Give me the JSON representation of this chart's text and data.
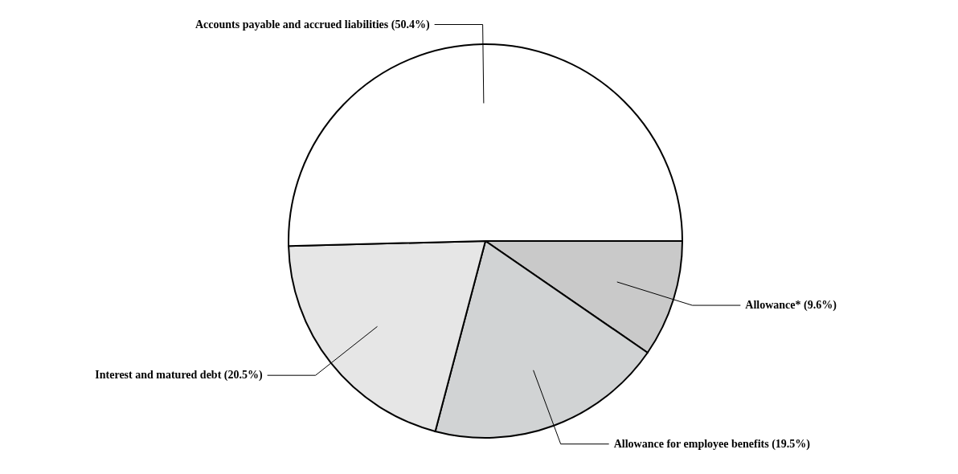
{
  "chart_data": {
    "type": "pie",
    "categories": [
      "Allowance*",
      "Allowance for employee benefits",
      "Interest and matured debt",
      "Accounts payable and accrued liabilities"
    ],
    "values": [
      9.6,
      19.5,
      20.5,
      50.4
    ],
    "value_labels": [
      "(9.6%)",
      "(19.5%)",
      "(20.5%)",
      "(50.4%)"
    ],
    "colors": [
      "#c9c9c9",
      "#d1d3d4",
      "#e6e6e6",
      "#ffffff"
    ]
  }
}
